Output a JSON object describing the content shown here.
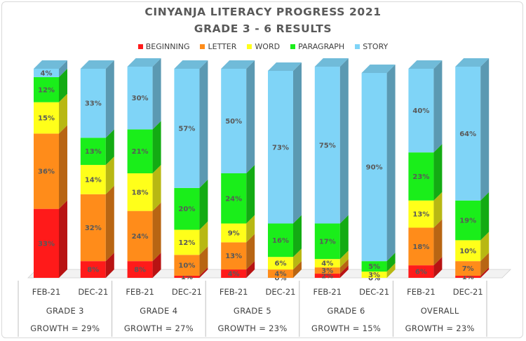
{
  "chart_data": {
    "type": "bar",
    "title": "CINYANJA LITERACY PROGRESS 2021",
    "subtitle": "GRADE 3 - 6 RESULTS",
    "stacked": true,
    "percent_stacked": true,
    "legend_position": "top",
    "categories": [
      "FEB-21",
      "DEC-21",
      "FEB-21",
      "DEC-21",
      "FEB-21",
      "DEC-21",
      "FEB-21",
      "DEC-21",
      "FEB-21",
      "DEC-21"
    ],
    "groups": [
      {
        "label": "GRADE 3",
        "growth": "GROWTH = 29%"
      },
      {
        "label": "GRADE 4",
        "growth": "GROWTH = 27%"
      },
      {
        "label": "GRADE 5",
        "growth": "GROWTH = 23%"
      },
      {
        "label": "GRADE 6",
        "growth": "GROWTH = 15%"
      },
      {
        "label": "OVERALL",
        "growth": "GROWTH = 23%"
      }
    ],
    "series": [
      {
        "name": "BEGINNING",
        "color": "#ff1a1a",
        "values": [
          33,
          8,
          8,
          1,
          4,
          0,
          2,
          0,
          6,
          1
        ]
      },
      {
        "name": "LETTER",
        "color": "#ff8c1a",
        "values": [
          36,
          32,
          24,
          10,
          13,
          4,
          3,
          0,
          18,
          7
        ]
      },
      {
        "name": "WORD",
        "color": "#ffff1a",
        "values": [
          15,
          14,
          18,
          12,
          9,
          6,
          4,
          3,
          13,
          10
        ]
      },
      {
        "name": "PARAGRAPH",
        "color": "#1aee1a",
        "values": [
          12,
          13,
          21,
          20,
          24,
          16,
          17,
          5,
          23,
          19
        ]
      },
      {
        "name": "STORY",
        "color": "#7fd4f7",
        "values": [
          4,
          33,
          30,
          57,
          50,
          73,
          75,
          90,
          40,
          64
        ]
      }
    ]
  }
}
